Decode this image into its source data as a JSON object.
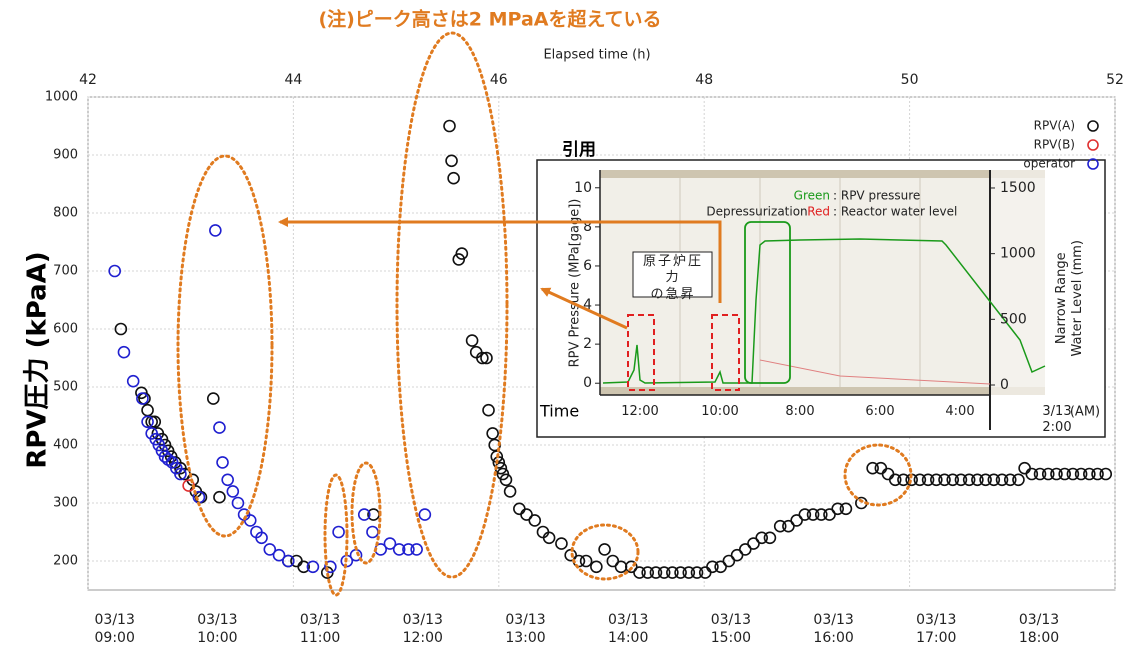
{
  "chart_data": [
    {
      "type": "scatter",
      "title": "(注)ピーク高さは2 MPaAを超えている",
      "title_color": "#e07b20",
      "xlabel": "Elapsed time (h)",
      "ylabel": "RPV圧力 (kPaA)",
      "xlim": [
        42,
        52
      ],
      "xticks": [
        42,
        44,
        46,
        48,
        50,
        52
      ],
      "x2ticks": [
        {
          "value": 42.26,
          "label": "03/13\n09:00"
        },
        {
          "value": 43.26,
          "label": "03/13\n10:00"
        },
        {
          "value": 44.26,
          "label": "03/13\n11:00"
        },
        {
          "value": 45.26,
          "label": "03/13\n12:00"
        },
        {
          "value": 46.26,
          "label": "03/13\n13:00"
        },
        {
          "value": 47.26,
          "label": "03/13\n14:00"
        },
        {
          "value": 48.26,
          "label": "03/13\n15:00"
        },
        {
          "value": 49.26,
          "label": "03/13\n16:00"
        },
        {
          "value": 50.26,
          "label": "03/13\n17:00"
        },
        {
          "value": 51.26,
          "label": "03/13\n18:00"
        }
      ],
      "ylim": [
        150,
        1000
      ],
      "yticks": [
        200,
        300,
        400,
        500,
        600,
        700,
        800,
        900,
        1000
      ],
      "grid": true,
      "legend": "top-right",
      "series": [
        {
          "name": "RPV(A)",
          "color": "#111111",
          "x": [
            42.32,
            42.52,
            42.55,
            42.58,
            42.62,
            42.65,
            42.68,
            42.72,
            42.75,
            42.78,
            42.81,
            42.85,
            42.9,
            42.94,
            43.02,
            43.05,
            43.1,
            43.22,
            43.28,
            43.95,
            44.03,
            44.1,
            44.33,
            44.78,
            45.52,
            45.54,
            45.56,
            45.61,
            45.64,
            45.74,
            45.78,
            45.84,
            45.88,
            45.9,
            45.94,
            45.96,
            45.98,
            46.0,
            46.02,
            46.04,
            46.07,
            46.11,
            46.2,
            46.27,
            46.35,
            46.43,
            46.49,
            46.61,
            46.7,
            46.78,
            46.85,
            46.95,
            47.03,
            47.11,
            47.19,
            47.29,
            47.37,
            47.45,
            47.53,
            47.61,
            47.69,
            47.77,
            47.85,
            47.93,
            48.01,
            48.08,
            48.16,
            48.24,
            48.32,
            48.4,
            48.48,
            48.56,
            48.64,
            48.74,
            48.82,
            48.9,
            48.98,
            49.06,
            49.14,
            49.22,
            49.3,
            49.38,
            49.53,
            49.64,
            49.72,
            49.79,
            49.86,
            49.94,
            50.02,
            50.1,
            50.18,
            50.26,
            50.34,
            50.42,
            50.5,
            50.58,
            50.66,
            50.74,
            50.82,
            50.9,
            50.98,
            51.06,
            51.12,
            51.19,
            51.27,
            51.35,
            51.43,
            51.51,
            51.59,
            51.67,
            51.75,
            51.83,
            51.91
          ],
          "values": [
            600,
            490,
            480,
            460,
            440,
            440,
            420,
            410,
            400,
            390,
            380,
            370,
            360,
            350,
            340,
            320,
            310,
            480,
            310,
            200,
            200,
            190,
            180,
            280,
            950,
            890,
            860,
            720,
            730,
            580,
            560,
            550,
            550,
            460,
            420,
            400,
            380,
            370,
            360,
            350,
            340,
            320,
            290,
            280,
            270,
            250,
            240,
            230,
            210,
            200,
            200,
            190,
            220,
            200,
            190,
            190,
            180,
            180,
            180,
            180,
            180,
            180,
            180,
            180,
            180,
            190,
            190,
            200,
            210,
            220,
            230,
            240,
            240,
            260,
            260,
            270,
            280,
            280,
            280,
            280,
            290,
            290,
            300,
            360,
            360,
            350,
            340,
            340,
            340,
            340,
            340,
            340,
            340,
            340,
            340,
            340,
            340,
            340,
            340,
            340,
            340,
            340,
            360,
            350,
            350,
            350,
            350,
            350,
            350,
            350,
            350,
            350,
            350
          ]
        },
        {
          "name": "RPV(B)",
          "color": "#e03030",
          "x": [
            42.98
          ],
          "values": [
            330
          ]
        },
        {
          "name": "operator",
          "color": "#2020d0",
          "x": [
            42.26,
            42.35,
            42.44,
            42.53,
            42.58,
            42.62,
            42.66,
            42.69,
            42.72,
            42.75,
            42.78,
            42.82,
            42.86,
            42.9,
            43.08,
            43.24,
            43.28,
            43.31,
            43.36,
            43.41,
            43.46,
            43.52,
            43.58,
            43.64,
            43.69,
            43.77,
            43.86,
            43.95,
            44.19,
            44.36,
            44.44,
            44.52,
            44.61,
            44.69,
            44.77,
            44.85,
            44.94,
            45.03,
            45.12,
            45.2,
            45.28
          ],
          "values": [
            700,
            560,
            510,
            480,
            440,
            420,
            410,
            400,
            390,
            380,
            375,
            370,
            360,
            350,
            310,
            770,
            430,
            370,
            340,
            320,
            300,
            280,
            270,
            250,
            240,
            220,
            210,
            200,
            190,
            190,
            250,
            200,
            210,
            280,
            250,
            220,
            230,
            220,
            220,
            220,
            280
          ]
        }
      ]
    },
    {
      "type": "line",
      "title": "引用",
      "xlabel": "Time",
      "x_note": "(AM)",
      "ylabel": "RPV Pressure (MPa[gage])",
      "y2label": "Narrow Range\nWater Level (mm)",
      "categories": [
        "12:00",
        "10:00",
        "8:00",
        "6:00",
        "4:00",
        "3/13\n2:00"
      ],
      "ylim": [
        -0.5,
        10.5
      ],
      "yticks": [
        0,
        2,
        4,
        6,
        8,
        10
      ],
      "y2lim": [
        -61,
        1576
      ],
      "y2ticks": [
        0,
        500,
        1000,
        1500
      ],
      "legend": [
        {
          "label": "Green",
          "text": ": RPV pressure",
          "color": "#1a9a1a"
        },
        {
          "label": "Red",
          "text": ": Reactor water level",
          "color": "#e02020"
        }
      ],
      "annotations": [
        "Depressurization",
        "原子炉圧力\nの急昇"
      ]
    }
  ]
}
